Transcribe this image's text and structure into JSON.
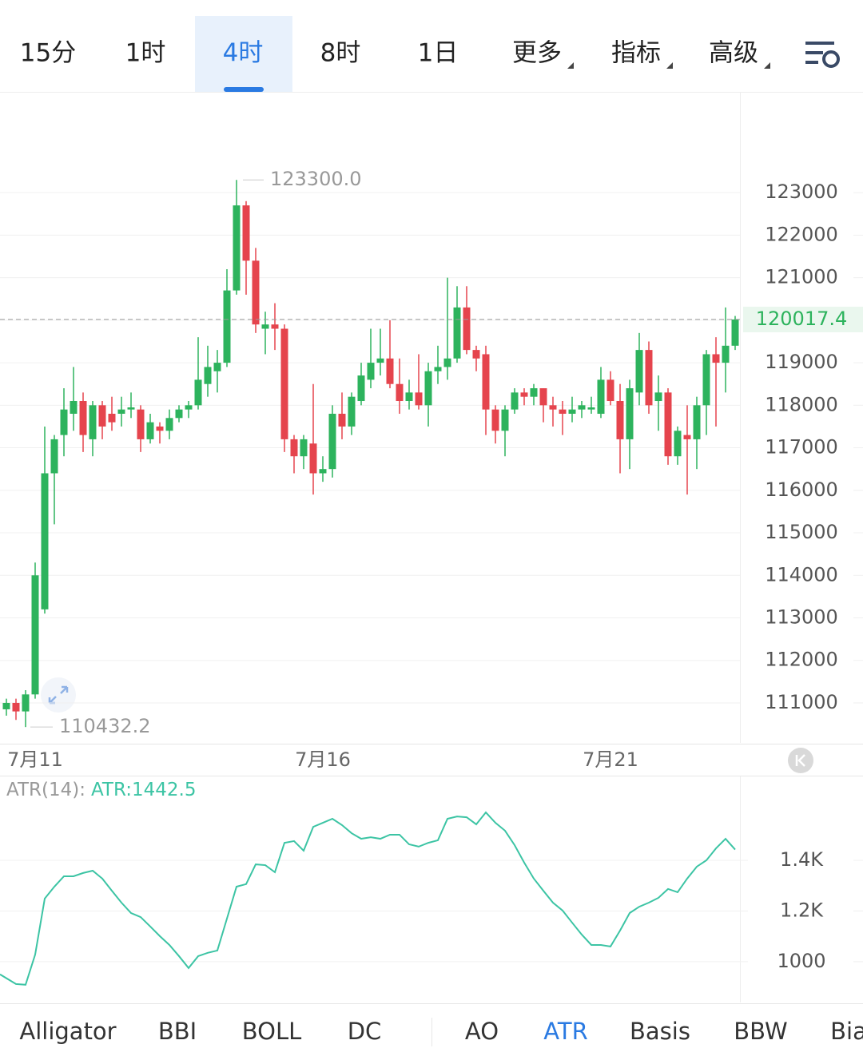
{
  "timeframe_tabs": {
    "items": [
      "15分",
      "1时",
      "4时",
      "8时",
      "1日",
      "更多",
      "指标",
      "高级"
    ],
    "active_index": 2,
    "color": "#222222",
    "active_color": "#2a7ae2"
  },
  "indicator_tabs": {
    "items": [
      "Alligator",
      "BBI",
      "BOLL",
      "DC",
      "AO",
      "ATR",
      "Basis",
      "BBW",
      "Bia"
    ],
    "active_index": 5
  },
  "chart_data": [
    {
      "type": "candlestick",
      "up_color": "#2db35d",
      "down_color": "#e5444d",
      "grid": true,
      "categories": [
        null,
        null,
        null,
        "7月11",
        null,
        null,
        null,
        null,
        null,
        null,
        null,
        null,
        null,
        null,
        null,
        null,
        null,
        null,
        null,
        null,
        null,
        null,
        null,
        null,
        null,
        null,
        null,
        null,
        null,
        null,
        null,
        null,
        null,
        "7月16",
        null,
        null,
        null,
        null,
        null,
        null,
        null,
        null,
        null,
        null,
        null,
        null,
        null,
        null,
        null,
        null,
        null,
        null,
        null,
        null,
        null,
        null,
        null,
        null,
        null,
        null,
        null,
        null,
        null,
        "7月21",
        null,
        null,
        null,
        null,
        null,
        null,
        null,
        null,
        null,
        null,
        null,
        null,
        null
      ],
      "open": [
        110850,
        111000,
        110800,
        111200,
        113200,
        116400,
        117300,
        117800,
        118100,
        117200,
        118000,
        117800,
        117800,
        117900,
        117900,
        117200,
        117500,
        117400,
        117700,
        117900,
        118000,
        118500,
        118800,
        119000,
        120700,
        122700,
        121400,
        119800,
        119900,
        119800,
        117200,
        116800,
        117100,
        116400,
        116500,
        117800,
        117500,
        118100,
        118600,
        119000,
        119100,
        118500,
        118100,
        118300,
        118000,
        118800,
        118900,
        119100,
        120300,
        119300,
        119200,
        117900,
        117400,
        117900,
        118300,
        118200,
        118400,
        118000,
        117900,
        117800,
        117900,
        117900,
        117800,
        118600,
        118100,
        117200,
        118300,
        119300,
        118100,
        118300,
        116800,
        117300,
        117200,
        118000,
        119200,
        119000,
        119400
      ],
      "high": [
        111100,
        111100,
        111300,
        114300,
        117500,
        117300,
        118400,
        118900,
        118300,
        118100,
        118100,
        118200,
        118200,
        118300,
        118000,
        117800,
        117600,
        117900,
        118000,
        118100,
        119600,
        119400,
        119300,
        121200,
        123300,
        122800,
        121700,
        120200,
        120400,
        119900,
        117300,
        117300,
        118500,
        116800,
        118000,
        118300,
        118300,
        119000,
        119800,
        119800,
        120000,
        119100,
        118600,
        119200,
        119000,
        119400,
        121000,
        120800,
        120800,
        119400,
        119400,
        118000,
        118000,
        118400,
        118400,
        118500,
        118400,
        118200,
        118100,
        118200,
        118100,
        118200,
        118900,
        118800,
        118500,
        118600,
        119700,
        119500,
        118700,
        118400,
        117500,
        118000,
        118200,
        119300,
        119600,
        120300,
        120100
      ],
      "low": [
        110700,
        110600,
        110432.2,
        111100,
        113100,
        115200,
        116800,
        117400,
        116900,
        116800,
        117200,
        117400,
        117500,
        117700,
        116900,
        117100,
        117100,
        117200,
        117600,
        117700,
        117900,
        118200,
        118300,
        118900,
        120600,
        120600,
        119700,
        119200,
        119300,
        116900,
        116400,
        116500,
        115900,
        116200,
        116300,
        117200,
        117300,
        118000,
        118400,
        118700,
        118400,
        117800,
        117900,
        117900,
        117500,
        118500,
        118600,
        119000,
        119200,
        118800,
        117300,
        117100,
        116800,
        117800,
        118000,
        118000,
        117600,
        117500,
        117300,
        117600,
        117700,
        117800,
        117700,
        118000,
        116400,
        116500,
        118000,
        117800,
        117400,
        116600,
        116600,
        115900,
        116500,
        117300,
        117500,
        118300,
        119300
      ],
      "close": [
        111000,
        110800,
        111200,
        114000,
        116400,
        117200,
        117900,
        118100,
        117300,
        118000,
        117500,
        117600,
        117900,
        117950,
        117200,
        117600,
        117400,
        117700,
        117900,
        118000,
        118600,
        118900,
        119000,
        120700,
        122700,
        121400,
        119900,
        119900,
        119800,
        117200,
        116800,
        117200,
        116400,
        116500,
        117800,
        117500,
        118200,
        118700,
        119000,
        119100,
        118500,
        118100,
        118300,
        118000,
        118800,
        118900,
        119100,
        120300,
        119300,
        119100,
        117900,
        117400,
        117900,
        118300,
        118200,
        118400,
        118000,
        117900,
        117800,
        117900,
        118000,
        117950,
        118600,
        118100,
        117200,
        118400,
        119300,
        118000,
        118300,
        116800,
        117400,
        117200,
        118000,
        119200,
        119000,
        119400,
        120017.4
      ],
      "ylim": [
        110060,
        125370
      ],
      "yticks": [
        111000,
        112000,
        113000,
        114000,
        115000,
        116000,
        117000,
        118000,
        119000,
        120000,
        121000,
        122000,
        123000
      ],
      "max_label": "123300.0",
      "min_label": "110432.2",
      "last_price_label": "120017.4"
    },
    {
      "type": "line",
      "title": "ATR(14):",
      "series": [
        {
          "name": "ATR:1442.5",
          "color": "#3cc4a4",
          "values": [
            950,
            912,
            909,
            1028,
            1249,
            1296,
            1337,
            1337,
            1350,
            1359,
            1328,
            1280,
            1233,
            1192,
            1176,
            1139,
            1101,
            1066,
            1022,
            975,
            1022,
            1035,
            1044,
            1170,
            1296,
            1306,
            1384,
            1381,
            1353,
            1469,
            1476,
            1438,
            1532,
            1548,
            1564,
            1539,
            1507,
            1485,
            1491,
            1485,
            1501,
            1501,
            1463,
            1454,
            1469,
            1479,
            1564,
            1573,
            1570,
            1542,
            1589,
            1548,
            1517,
            1460,
            1391,
            1328,
            1280,
            1233,
            1202,
            1154,
            1107,
            1066,
            1066,
            1060,
            1123,
            1192,
            1217,
            1233,
            1252,
            1287,
            1274,
            1328,
            1375,
            1400,
            1447,
            1485,
            1442.5
          ]
        }
      ],
      "ylim": [
        839,
        1731
      ],
      "yticks": [
        1000,
        {
          "value": 1200,
          "label": "1.2K"
        },
        {
          "value": 1400,
          "label": "1.4K"
        }
      ],
      "grid": true
    }
  ]
}
